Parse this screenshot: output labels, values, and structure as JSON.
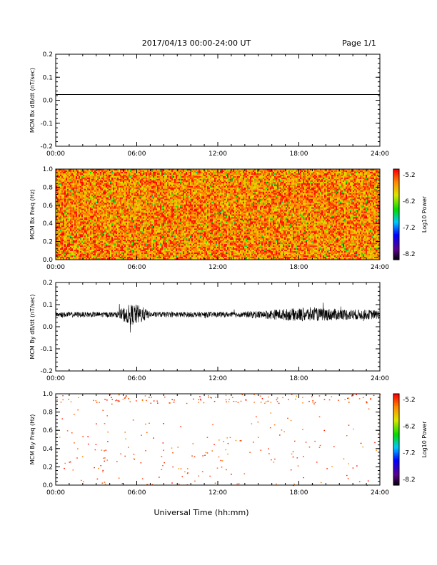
{
  "header": {
    "date_range": "2017/04/13  00:00-24:00 UT",
    "page": "Page 1/1"
  },
  "xlabel": "Universal Time (hh:mm)",
  "colorbar": {
    "label": "Log10 Power",
    "ticks": [
      "-5.2",
      "-6.2",
      "-7.2",
      "-8.2"
    ]
  },
  "chart_data": [
    {
      "type": "line",
      "ylabel": "MCM Bx dB/dt (nT/sec)",
      "x_ticks": [
        "00:00",
        "06:00",
        "12:00",
        "18:00",
        "24:00"
      ],
      "y_ticks": [
        "0.2",
        "0.1",
        "0.0",
        "-0.1",
        "-0.2"
      ],
      "xlim": [
        0,
        24
      ],
      "ylim": [
        -0.2,
        0.2
      ],
      "series_constant_y": 0.025
    },
    {
      "type": "heatmap",
      "ylabel": "MCM Bx Freq (Hz)",
      "x_ticks": [
        "00:00",
        "06:00",
        "12:00",
        "18:00",
        "24:00"
      ],
      "y_ticks": [
        "1.0",
        "0.8",
        "0.6",
        "0.4",
        "0.2",
        "0.0"
      ],
      "xlim": [
        0,
        24
      ],
      "ylim": [
        0,
        1.0
      ],
      "zlim": [
        -8.2,
        -5.2
      ],
      "typical_log_power": -5.6
    },
    {
      "type": "line",
      "ylabel": "MCM By dB/dt (nT/sec)",
      "x_ticks": [
        "00:00",
        "06:00",
        "12:00",
        "18:00",
        "24:00"
      ],
      "y_ticks": [
        "0.2",
        "0.1",
        "0.0",
        "-0.1",
        "-0.2"
      ],
      "xlim": [
        0,
        24
      ],
      "ylim": [
        -0.2,
        0.2
      ],
      "baseline": 0.055,
      "activity_windows_hours": [
        [
          4.5,
          7.0
        ],
        [
          14.0,
          24.0
        ]
      ]
    },
    {
      "type": "heatmap",
      "ylabel": "MCM By Freq (Hz)",
      "x_ticks": [
        "00:00",
        "06:00",
        "12:00",
        "18:00",
        "24:00"
      ],
      "y_ticks": [
        "1.0",
        "0.8",
        "0.6",
        "0.4",
        "0.2",
        "0.0"
      ],
      "xlim": [
        0,
        24
      ],
      "ylim": [
        0,
        1.0
      ],
      "zlim": [
        -8.2,
        -5.2
      ],
      "sparse": true
    }
  ]
}
